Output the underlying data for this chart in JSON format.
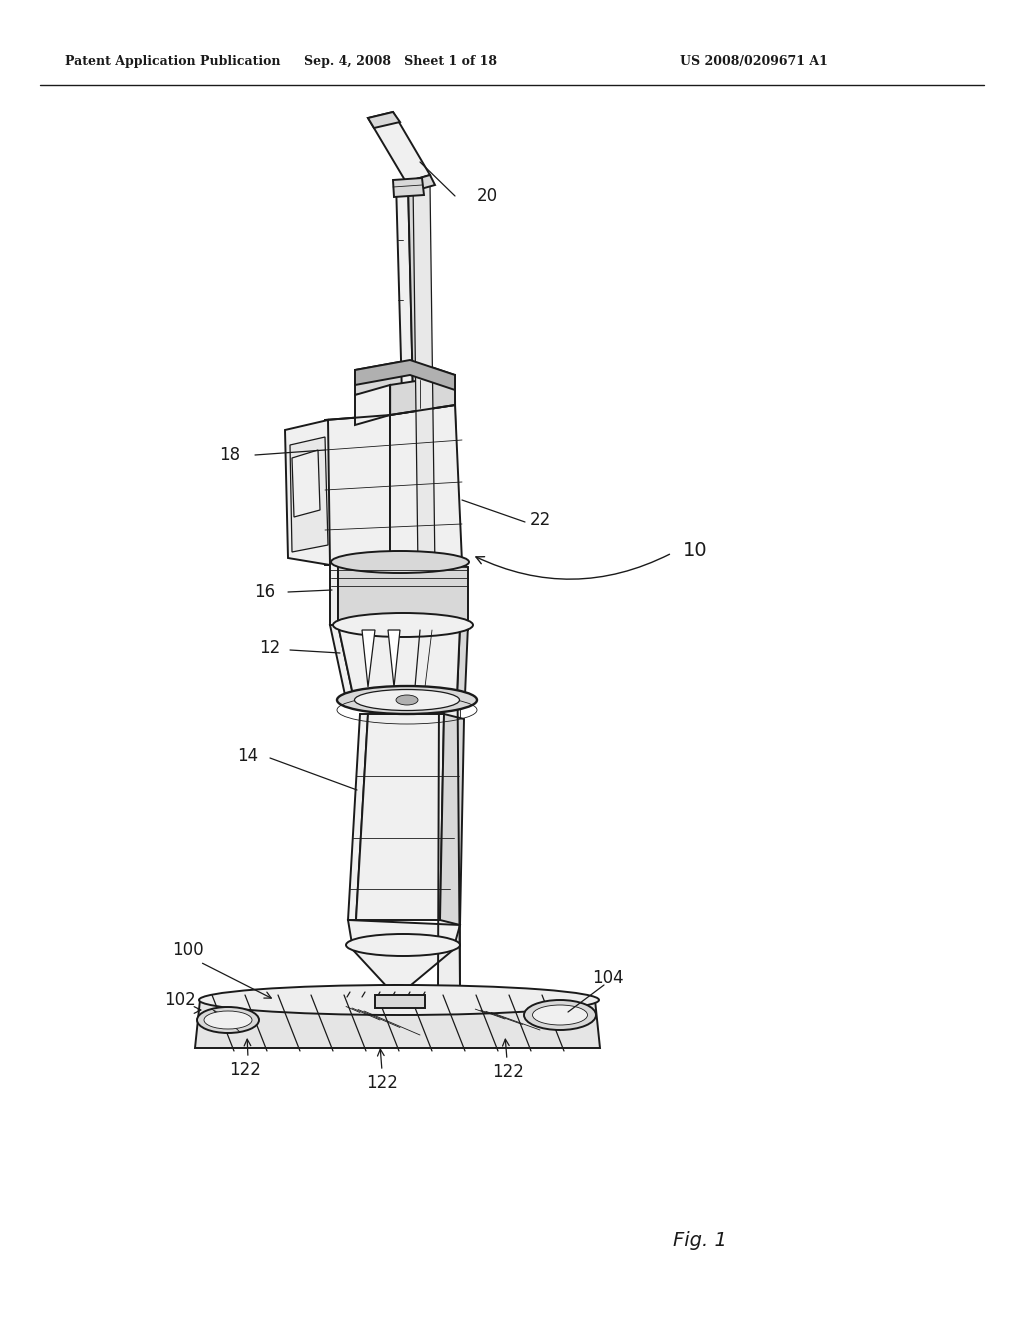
{
  "bg_color": "#ffffff",
  "line_color": "#1a1a1a",
  "header_left": "Patent Application Publication",
  "header_mid": "Sep. 4, 2008   Sheet 1 of 18",
  "header_right": "US 2008/0209671 A1",
  "fig_label": "Fig. 1",
  "gray_light": "#f0f0f0",
  "gray_mid": "#d8d8d8",
  "gray_dark": "#b0b0b0",
  "white": "#ffffff",
  "lw_main": 1.4,
  "lw_detail": 0.9,
  "lw_thin": 0.6
}
